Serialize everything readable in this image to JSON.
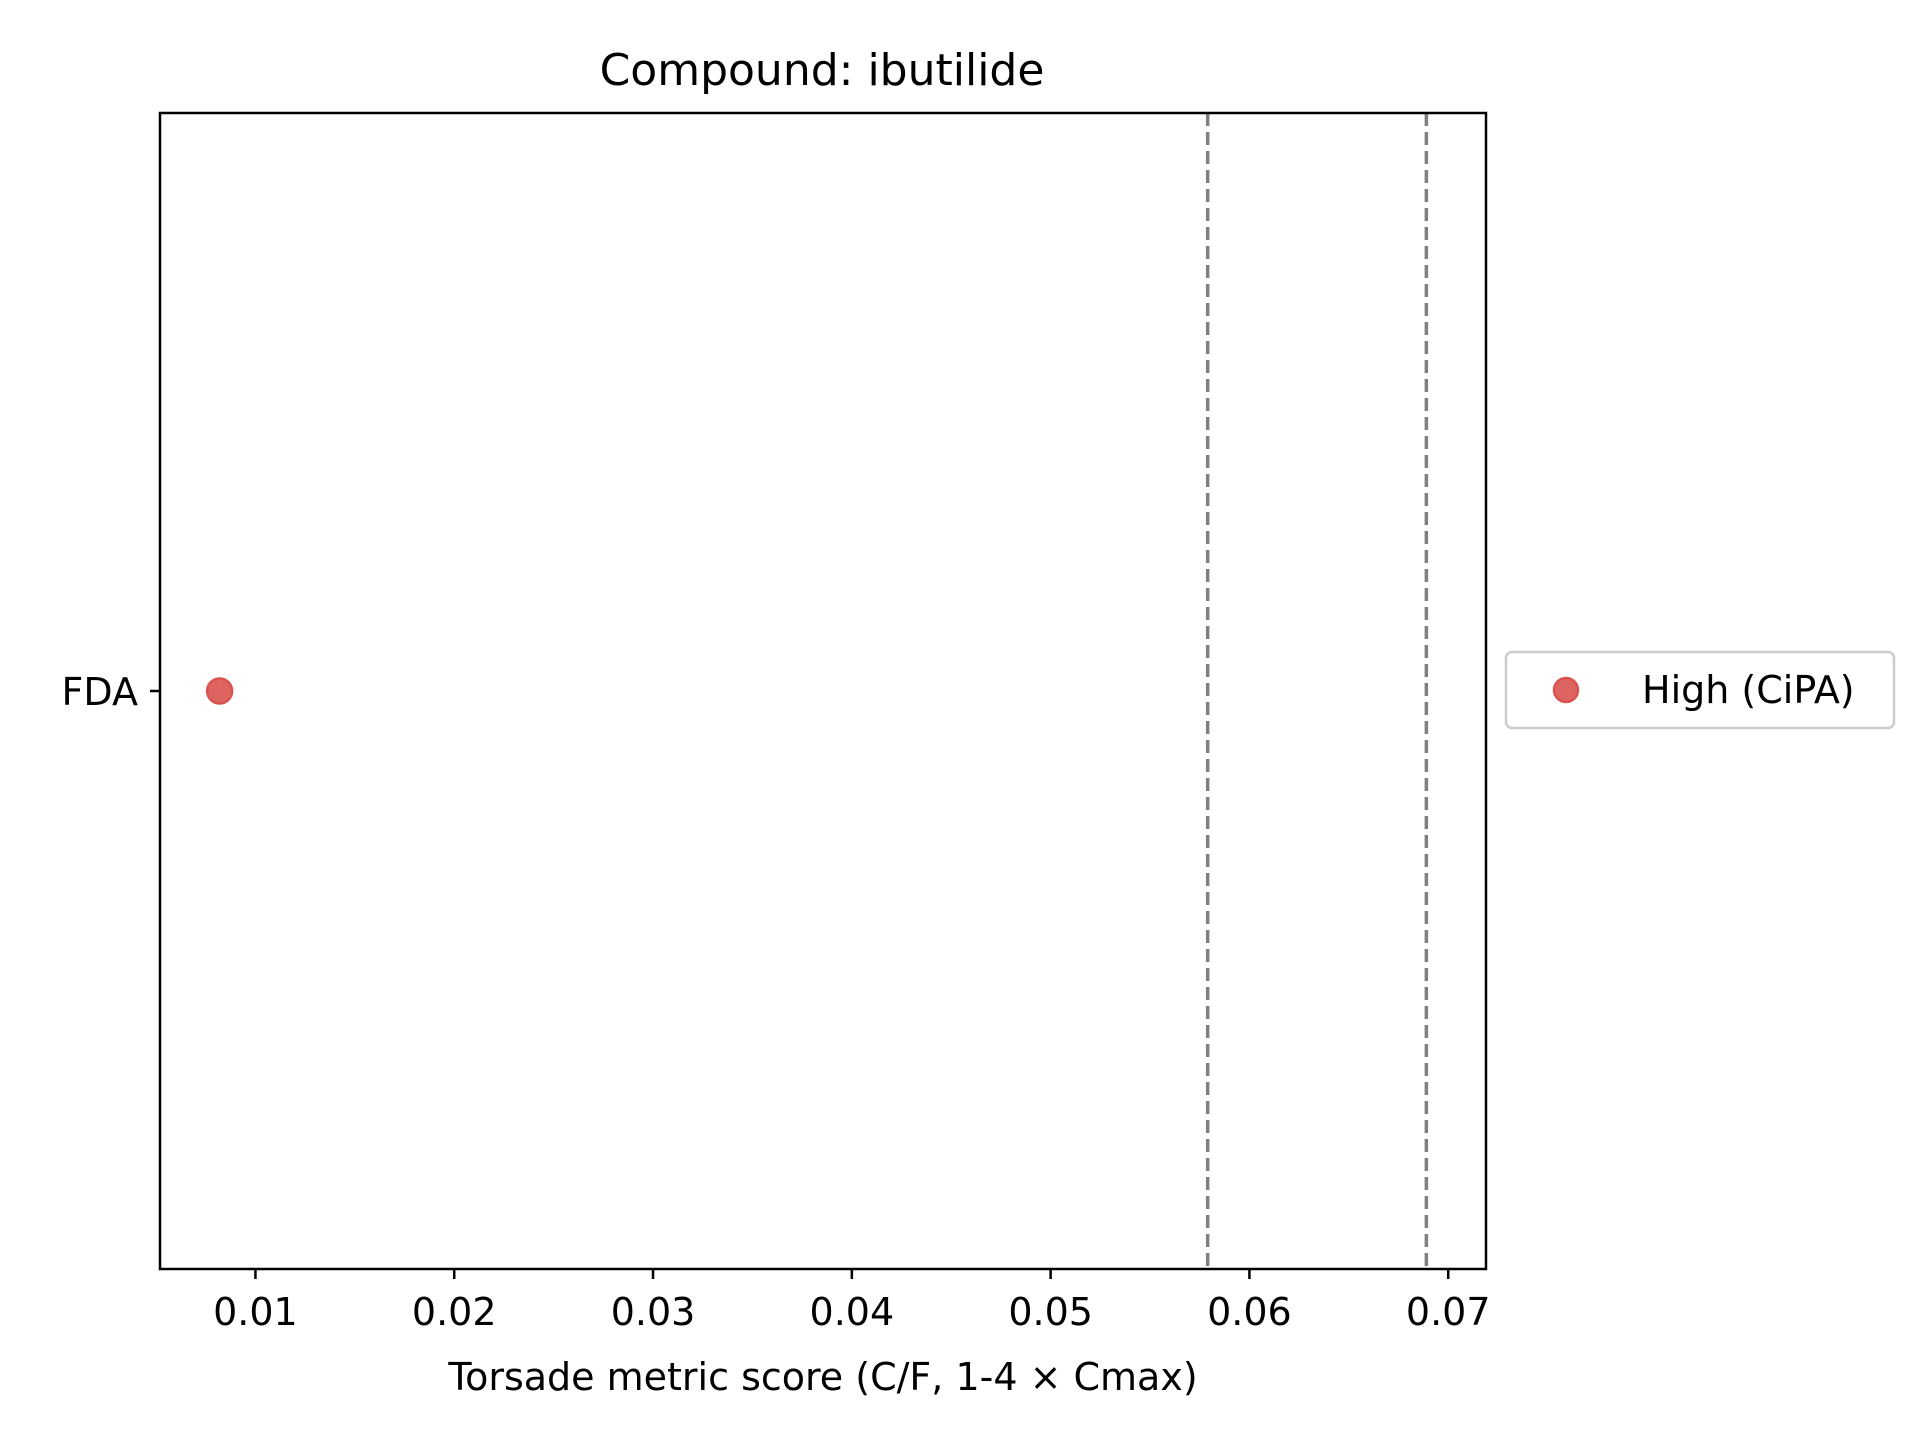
{
  "chart_data": {
    "type": "scatter",
    "title": "Compound: ibutilide",
    "xlabel": "Torsade metric score (C/F, 1-4 × Cmax)",
    "ylabel": "",
    "xlim": [
      0.0052,
      0.0719
    ],
    "xticks": [
      0.01,
      0.02,
      0.03,
      0.04,
      0.05,
      0.06,
      0.07
    ],
    "xtick_labels": [
      "0.01",
      "0.02",
      "0.03",
      "0.04",
      "0.05",
      "0.06",
      "0.07"
    ],
    "categories": [
      "FDA"
    ],
    "series": [
      {
        "name": "High (CiPA)",
        "color": "#d9534f",
        "points": [
          {
            "x": 0.0082,
            "y": "FDA"
          }
        ]
      }
    ],
    "reference_lines": [
      {
        "x": 0.0579,
        "style": "dashed",
        "color": "#808080"
      },
      {
        "x": 0.0689,
        "style": "dashed",
        "color": "#808080"
      }
    ],
    "grid": false,
    "legend_placement": "outside-right"
  }
}
